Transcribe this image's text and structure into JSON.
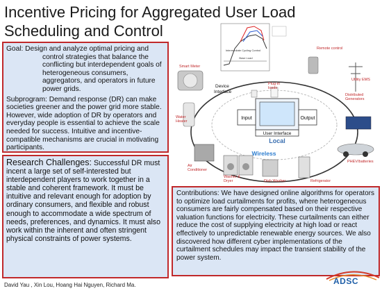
{
  "title": {
    "line1": "Incentive Pricing for Aggregated User Load",
    "line2": "Scheduling and Control"
  },
  "goal": {
    "text": "Goal:  Design and analyze optimal pricing and control strategies that balance the conflicting but interdependent goals of heterogeneous consumers, aggregators, and operators in future power grids.",
    "subproblem": "Subprogram: Demand response (DR) can make societies greener and the power grid more stable. However, wide adoption of DR by operators and everyday people is essential to achieve the scale needed for success. Intuitive and incentive-compatible mechanisms are crucial in motivating participants."
  },
  "research": {
    "heading": "Research Challenges:",
    "text": "  Successful DR must incent a large set of self-interested but interdependent players to work together in a stable and coherent framework. It must be intuitive and relevant enough for adoption by ordinary consumers, and flexible and robust enough to accommodate a wide spectrum of needs, preferences, and dynamics. It must also work within the inherent and often stringent physical constraints of power systems."
  },
  "contributions": {
    "text": "Contributions:  We have designed online algorithms for operators to optimize load curtailments for profits, where heterogeneous consumers are fairly compensated based on their respective valuation functions for electricity. These curtailments can either reduce the cost of supplying electricity at high load or react effectively to unpredictable renewable energy sources. We also discovered how different cyber implementations of the curtailment schedules may impact the transient stability of the power system."
  },
  "authors": "David Yau , Xin Lou, Hoang Hai Nguyen, Richard Ma.",
  "logo": {
    "text": "ADSC"
  },
  "diagram": {
    "device_interface": "Device Interface",
    "input": "Input",
    "output": "Output",
    "user_interface": "User Interface",
    "local": "Local",
    "wireless": "Wireless",
    "smart_meter": "Smart Meter",
    "plugin_loads": "Plug-in loads",
    "remote_control": "Remote control",
    "utility_ems": "Utility EMS",
    "distributed_generators": "Distributed Generators",
    "phev_batteries": "PHEV/batteries",
    "water_heater": "Water Heater",
    "air_conditioner": "Air Conditioner",
    "washer_dryer": "Washer & Dryer",
    "dish_washer": "Dish Washer",
    "refrigerator": "Refrigerator",
    "chart_legend": "Intermediate Cycling Control",
    "base_load": "Base Load"
  },
  "colors": {
    "border": "#c0282a",
    "box_fill": "#dbe6f5",
    "local_text": "#3a6fb0",
    "wireless_text": "#2f7fd0",
    "device_label": "#c0282a"
  }
}
